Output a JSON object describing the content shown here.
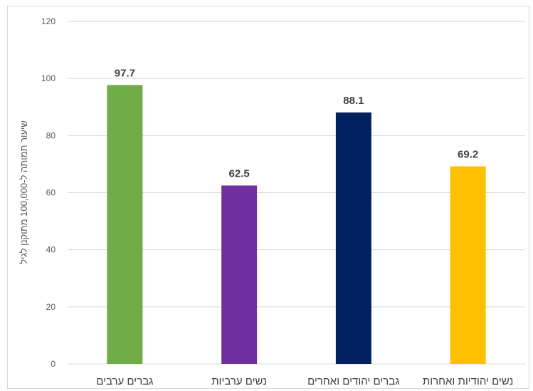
{
  "chart_data": {
    "type": "bar",
    "ylabel": "שיעור תמותה ל-100,000 מתוקנן לגיל",
    "ylim": [
      0,
      120
    ],
    "yticks": [
      "0",
      "20",
      "40",
      "60",
      "80",
      "100",
      "120"
    ],
    "grid": true,
    "categories": [
      "גברים ערבים",
      "נשים ערביות",
      "גברים יהודים ואחרים",
      "נשים יהודיות ואחרות"
    ],
    "values": [
      97.7,
      62.5,
      88.1,
      69.2
    ],
    "value_labels": [
      "97.7",
      "62.5",
      "88.1",
      "69.2"
    ],
    "colors": [
      "#70ad47",
      "#7030a0",
      "#002060",
      "#ffc000"
    ]
  }
}
